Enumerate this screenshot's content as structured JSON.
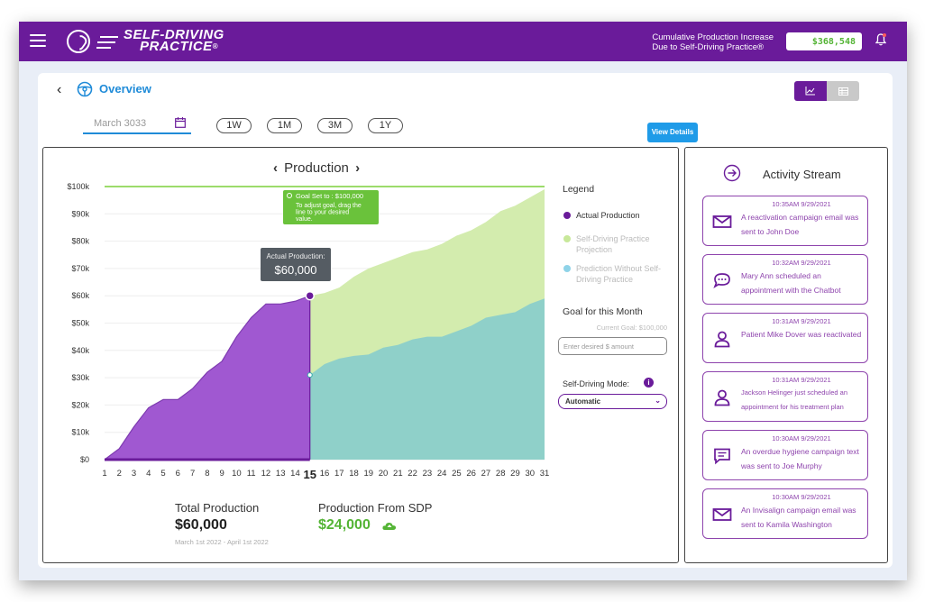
{
  "header": {
    "logo_line1": "SELF-DRIVING",
    "logo_line2": "PRACTICE",
    "logo_reg": "®",
    "cumulative_label_line1": "Cumulative Production Increase",
    "cumulative_label_line2": "Due to Self-Driving Practice®",
    "cumulative_value": "$368,548",
    "icons": [
      "hamburger-icon",
      "logo-icon",
      "bell-icon"
    ],
    "colors": {
      "brand": "#6a1b9a",
      "accent_green": "#54b435",
      "accent_blue": "#1f8bd8"
    }
  },
  "overview": {
    "back_glyph": "‹",
    "title": "Overview",
    "view_toggle": [
      {
        "icon": "line-chart-icon",
        "active": true
      },
      {
        "icon": "table-icon",
        "active": false
      }
    ],
    "date_value": "March 3033",
    "ranges": [
      "1W",
      "1M",
      "3M",
      "1Y"
    ],
    "view_details": "View Details"
  },
  "production": {
    "title": "Production",
    "prev": "‹",
    "next": "›",
    "goal_tooltip_line1": "Goal Set to : $100,000",
    "goal_tooltip_rest": "To adjust goal, drag the line to your desired value.",
    "actual_tooltip_label": "Actual Production:",
    "actual_tooltip_value": "$60,000",
    "legend_title": "Legend",
    "legend": [
      {
        "label": "Actual Production",
        "color": "#6a1b9a"
      },
      {
        "label": "Self-Driving Practice Projection",
        "color": "#c8e89a"
      },
      {
        "label": "Prediction Without Self-Driving Practice",
        "color": "#8fd3e8"
      }
    ],
    "goal_title": "Goal for this Month",
    "current_goal": "Current Goal: $100,000",
    "goal_placeholder": "Enter desired $ amount",
    "mode_label": "Self-Driving Mode:",
    "mode_value": "Automatic",
    "total_label": "Total Production",
    "total_value": "$60,000",
    "total_range": "March 1st 2022 - April 1st 2022",
    "sdp_label": "Production From SDP",
    "sdp_value": "$24,000"
  },
  "chart_data": {
    "type": "area",
    "x": [
      1,
      2,
      3,
      4,
      5,
      6,
      7,
      8,
      9,
      10,
      11,
      12,
      13,
      14,
      15,
      16,
      17,
      18,
      19,
      20,
      21,
      22,
      23,
      24,
      25,
      26,
      27,
      28,
      29,
      30,
      31
    ],
    "highlight_x": 15,
    "yticks": [
      "$0",
      "$10k",
      "$20k",
      "$30k",
      "$40k",
      "$50k",
      "$60k",
      "$70k",
      "$80k",
      "$90k",
      "$100k"
    ],
    "ylim": [
      0,
      100000
    ],
    "goal": 100000,
    "series": [
      {
        "name": "Actual Production",
        "color": "#9b4fcf",
        "points": [
          [
            1,
            0
          ],
          [
            2,
            4000
          ],
          [
            3,
            12000
          ],
          [
            4,
            19000
          ],
          [
            5,
            22000
          ],
          [
            6,
            22000
          ],
          [
            7,
            26000
          ],
          [
            8,
            32000
          ],
          [
            9,
            36000
          ],
          [
            10,
            45000
          ],
          [
            11,
            52000
          ],
          [
            12,
            57000
          ],
          [
            13,
            57000
          ],
          [
            14,
            58000
          ],
          [
            15,
            60000
          ]
        ]
      },
      {
        "name": "Self-Driving Practice Projection",
        "color": "#d3ecae",
        "points": [
          [
            15,
            60000
          ],
          [
            16,
            61000
          ],
          [
            17,
            63000
          ],
          [
            18,
            67000
          ],
          [
            19,
            70000
          ],
          [
            20,
            72000
          ],
          [
            21,
            74000
          ],
          [
            22,
            76000
          ],
          [
            23,
            77000
          ],
          [
            24,
            79000
          ],
          [
            25,
            82000
          ],
          [
            26,
            84000
          ],
          [
            27,
            87000
          ],
          [
            28,
            91000
          ],
          [
            29,
            93000
          ],
          [
            30,
            96000
          ],
          [
            31,
            99000
          ]
        ]
      },
      {
        "name": "Prediction Without Self-Driving Practice",
        "color": "#8fd0c9",
        "points": [
          [
            15,
            31000
          ],
          [
            16,
            35000
          ],
          [
            17,
            37000
          ],
          [
            18,
            38000
          ],
          [
            19,
            38500
          ],
          [
            20,
            41000
          ],
          [
            21,
            42000
          ],
          [
            22,
            44000
          ],
          [
            23,
            45000
          ],
          [
            24,
            45000
          ],
          [
            25,
            47000
          ],
          [
            26,
            49000
          ],
          [
            27,
            52000
          ],
          [
            28,
            53000
          ],
          [
            29,
            54000
          ],
          [
            30,
            57000
          ],
          [
            31,
            59000
          ]
        ]
      }
    ]
  },
  "activity": {
    "title": "Activity Stream",
    "items": [
      {
        "time": "10:35AM 9/29/2021",
        "text": "A reactivation campaign email was sent to John Doe",
        "icon": "mail-icon"
      },
      {
        "time": "10:32AM 9/29/2021",
        "text": "Mary Ann scheduled an appointment with the Chatbot",
        "icon": "chat-icon"
      },
      {
        "time": "10:31AM 9/29/2021",
        "text": "Patient Mike Dover was reactivated",
        "icon": "user-icon"
      },
      {
        "time": "10:31AM 9/29/2021",
        "text": "Jackson Helinger just scheduled an appointment for his treatment plan",
        "icon": "user-icon"
      },
      {
        "time": "10:30AM 9/29/2021",
        "text": "An overdue hygiene campaign text was sent to Joe Murphy",
        "icon": "message-icon"
      },
      {
        "time": "10:30AM 9/29/2021",
        "text": "An Invisalign campaign email was sent to Kamila Washington",
        "icon": "mail-icon"
      }
    ]
  }
}
